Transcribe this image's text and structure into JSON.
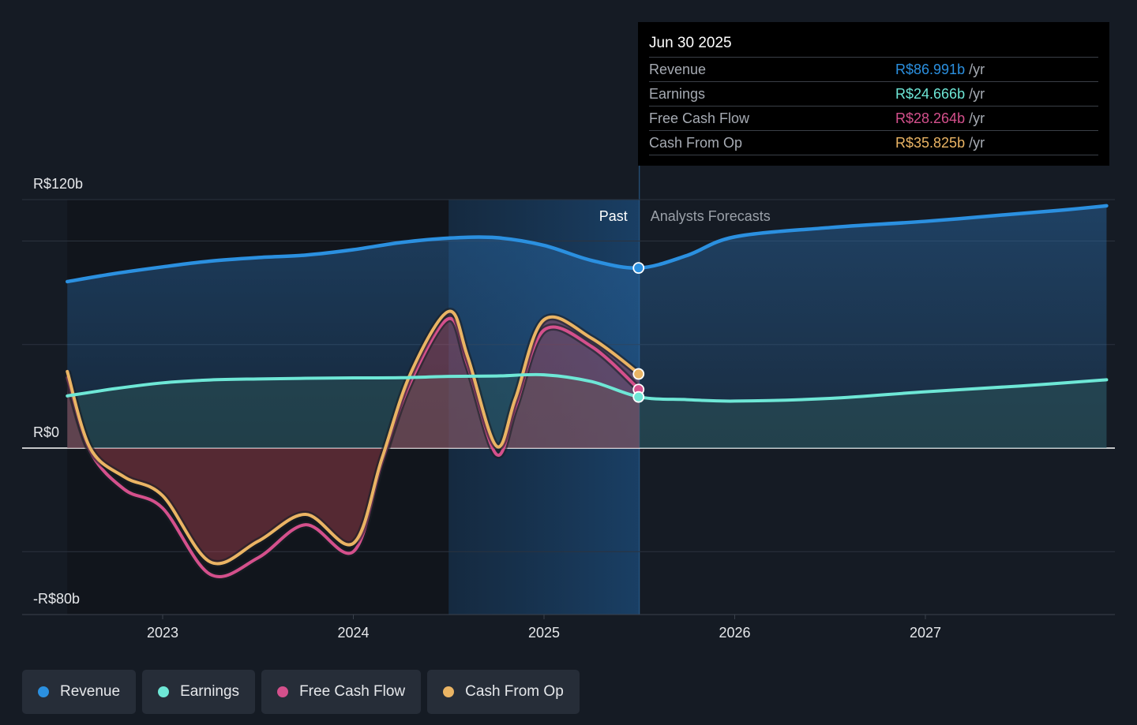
{
  "colors": {
    "background": "#151b24",
    "revenue": "#2b90e0",
    "earnings": "#6ee7d6",
    "fcf": "#d4508c",
    "cfo": "#eab464",
    "past_band": "#153657"
  },
  "tooltip": {
    "date": "Jun 30 2025",
    "rows": [
      {
        "label": "Revenue",
        "value": "R$86.991b",
        "unit": "/yr",
        "color": "#2b90e0"
      },
      {
        "label": "Earnings",
        "value": "R$24.666b",
        "unit": "/yr",
        "color": "#6ee7d6"
      },
      {
        "label": "Free Cash Flow",
        "value": "R$28.264b",
        "unit": "/yr",
        "color": "#d4508c"
      },
      {
        "label": "Cash From Op",
        "value": "R$35.825b",
        "unit": "/yr",
        "color": "#eab464"
      }
    ]
  },
  "legend": [
    {
      "label": "Revenue",
      "color": "#2b90e0"
    },
    {
      "label": "Earnings",
      "color": "#6ee7d6"
    },
    {
      "label": "Free Cash Flow",
      "color": "#d4508c"
    },
    {
      "label": "Cash From Op",
      "color": "#eab464"
    }
  ],
  "chart_data": {
    "type": "line",
    "title": "",
    "xlabel": "",
    "ylabel": "",
    "y_tick_labels": [
      "R$120b",
      "R$0",
      "-R$80b"
    ],
    "ylim": [
      -80,
      120
    ],
    "x_tick_labels": [
      "2023",
      "2024",
      "2025",
      "2026",
      "2027"
    ],
    "divider_labels": {
      "past": "Past",
      "forecast": "Analysts Forecasts"
    },
    "divider_date": 2025.5,
    "grid": true,
    "legend_position": "bottom",
    "series": [
      {
        "name": "Revenue",
        "x": [
          2022.5,
          2022.75,
          2023.0,
          2023.25,
          2023.5,
          2023.75,
          2024.0,
          2024.25,
          2024.5,
          2024.75,
          2025.0,
          2025.25,
          2025.5,
          2025.75,
          2026.0,
          2026.5,
          2027.0,
          2027.5,
          2027.75,
          2027.95
        ],
        "values": [
          80.4,
          84.3,
          87.5,
          90.3,
          92.0,
          93.2,
          95.8,
          99.3,
          101.4,
          101.6,
          97.9,
          90.6,
          87.0,
          93.0,
          102.0,
          106.5,
          109.5,
          113.3,
          115.2,
          117.0
        ]
      },
      {
        "name": "Earnings",
        "x": [
          2022.5,
          2022.75,
          2023.0,
          2023.25,
          2023.5,
          2023.75,
          2024.0,
          2024.25,
          2024.5,
          2024.75,
          2025.0,
          2025.25,
          2025.5,
          2025.75,
          2026.0,
          2026.5,
          2027.0,
          2027.5,
          2027.95
        ],
        "values": [
          25.2,
          28.7,
          31.5,
          32.9,
          33.4,
          33.7,
          33.9,
          34.0,
          34.6,
          34.8,
          35.4,
          32.1,
          24.7,
          23.4,
          22.7,
          24.0,
          27.2,
          30.0,
          33.0
        ]
      },
      {
        "name": "Free Cash Flow",
        "x": [
          2022.5,
          2022.62,
          2022.8,
          2023.0,
          2023.25,
          2023.5,
          2023.75,
          2024.0,
          2024.15,
          2024.3,
          2024.5,
          2024.6,
          2024.75,
          2024.85,
          2025.0,
          2025.25,
          2025.5
        ],
        "values": [
          34.0,
          -1.5,
          -20.0,
          -29.0,
          -61.0,
          -53.0,
          -37.0,
          -50.0,
          -7.0,
          32.0,
          62.5,
          40.0,
          -3.0,
          20.0,
          57.0,
          49.0,
          28.3
        ]
      },
      {
        "name": "Cash From Op",
        "x": [
          2022.5,
          2022.62,
          2022.8,
          2023.0,
          2023.25,
          2023.5,
          2023.75,
          2024.0,
          2024.15,
          2024.3,
          2024.5,
          2024.6,
          2024.75,
          2024.85,
          2025.0,
          2025.25,
          2025.5
        ],
        "values": [
          37.0,
          0.0,
          -14.0,
          -23.0,
          -55.0,
          -45.0,
          -32.0,
          -46.0,
          -5.0,
          36.0,
          66.0,
          44.0,
          1.0,
          24.0,
          62.0,
          53.0,
          35.8
        ]
      }
    ]
  }
}
